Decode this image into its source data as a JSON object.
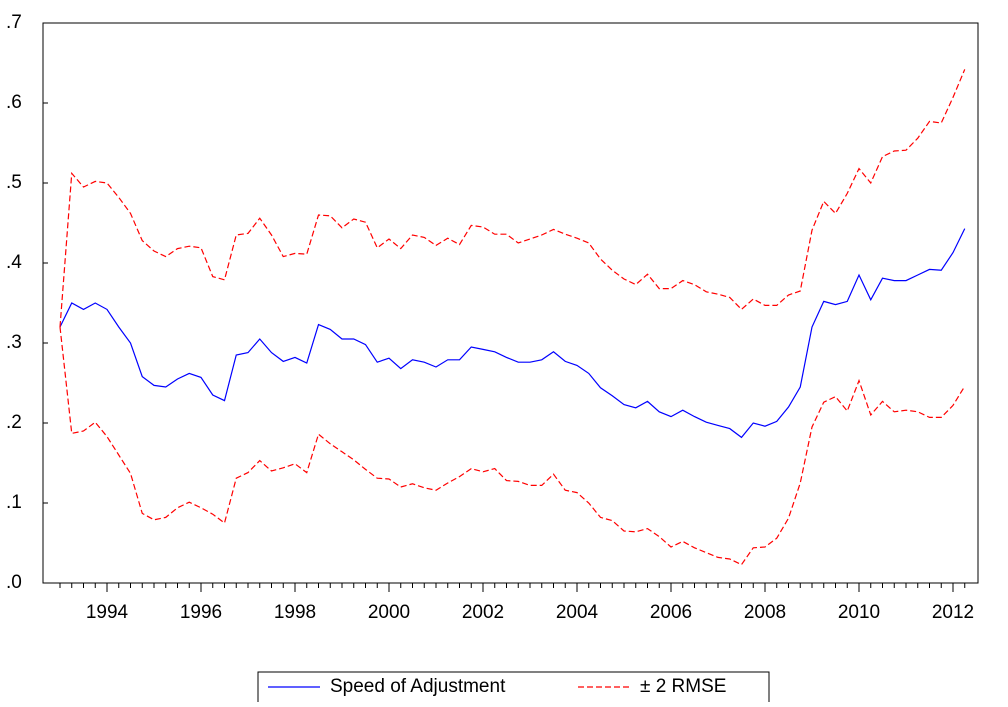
{
  "chart_data": {
    "type": "line",
    "categories": [
      null,
      null,
      null,
      null,
      "1994",
      null,
      null,
      null,
      null,
      null,
      null,
      null,
      "1996",
      null,
      null,
      null,
      null,
      null,
      null,
      null,
      "1998",
      null,
      null,
      null,
      null,
      null,
      null,
      null,
      "2000",
      null,
      null,
      null,
      null,
      null,
      null,
      null,
      "2002",
      null,
      null,
      null,
      null,
      null,
      null,
      null,
      "2004",
      null,
      null,
      null,
      null,
      null,
      null,
      null,
      "2006",
      null,
      null,
      null,
      null,
      null,
      null,
      null,
      "2008",
      null,
      null,
      null,
      null,
      null,
      null,
      null,
      "2010",
      null,
      null,
      null,
      null,
      null,
      null,
      null,
      "2012",
      null
    ],
    "series": [
      {
        "name": "Speed of Adjustment",
        "color": "#0000ff",
        "dashed": false,
        "values": [
          0.32,
          0.35,
          0.342,
          0.35,
          0.342,
          0.32,
          0.3,
          0.258,
          0.247,
          0.245,
          0.255,
          0.262,
          0.257,
          0.235,
          0.228,
          0.285,
          0.288,
          0.305,
          0.288,
          0.277,
          0.282,
          0.275,
          0.323,
          0.317,
          0.305,
          0.305,
          0.298,
          0.276,
          0.281,
          0.268,
          0.279,
          0.276,
          0.27,
          0.279,
          0.279,
          0.295,
          0.292,
          0.289,
          0.282,
          0.276,
          0.276,
          0.279,
          0.289,
          0.277,
          0.272,
          0.262,
          0.244,
          0.234,
          0.223,
          0.219,
          0.227,
          0.214,
          0.208,
          0.216,
          0.208,
          0.201,
          0.197,
          0.193,
          0.182,
          0.2,
          0.196,
          0.202,
          0.22,
          0.245,
          0.32,
          0.352,
          0.348,
          0.352,
          0.385,
          0.354,
          0.381,
          0.378,
          0.378,
          0.385,
          0.392,
          0.391,
          0.413,
          0.443
        ]
      },
      {
        "name": "± 2 RMSE",
        "color": "#ff0000",
        "dashed": true,
        "values": [
          0.32,
          0.512,
          0.495,
          0.502,
          0.5,
          0.482,
          0.462,
          0.428,
          0.415,
          0.408,
          0.418,
          0.421,
          0.419,
          0.383,
          0.379,
          0.435,
          0.437,
          0.456,
          0.435,
          0.408,
          0.412,
          0.411,
          0.46,
          0.459,
          0.444,
          0.455,
          0.451,
          0.419,
          0.43,
          0.418,
          0.435,
          0.432,
          0.422,
          0.431,
          0.423,
          0.447,
          0.445,
          0.436,
          0.436,
          0.425,
          0.43,
          0.435,
          0.442,
          0.436,
          0.431,
          0.425,
          0.405,
          0.391,
          0.38,
          0.373,
          0.386,
          0.368,
          0.368,
          0.378,
          0.373,
          0.364,
          0.361,
          0.357,
          0.342,
          0.355,
          0.347,
          0.347,
          0.36,
          0.365,
          0.441,
          0.477,
          0.462,
          0.487,
          0.518,
          0.5,
          0.533,
          0.54,
          0.541,
          0.556,
          0.577,
          0.575,
          0.607,
          0.642
        ],
        "values_lower": [
          0.32,
          0.187,
          0.19,
          0.201,
          0.183,
          0.16,
          0.137,
          0.087,
          0.079,
          0.082,
          0.094,
          0.101,
          0.094,
          0.086,
          0.075,
          0.131,
          0.138,
          0.153,
          0.14,
          0.144,
          0.149,
          0.138,
          0.186,
          0.174,
          0.164,
          0.154,
          0.142,
          0.131,
          0.13,
          0.12,
          0.124,
          0.119,
          0.116,
          0.125,
          0.133,
          0.143,
          0.139,
          0.143,
          0.128,
          0.127,
          0.122,
          0.122,
          0.136,
          0.116,
          0.113,
          0.1,
          0.082,
          0.078,
          0.065,
          0.064,
          0.068,
          0.058,
          0.045,
          0.052,
          0.044,
          0.038,
          0.032,
          0.03,
          0.023,
          0.044,
          0.045,
          0.056,
          0.081,
          0.125,
          0.195,
          0.226,
          0.233,
          0.215,
          0.253,
          0.21,
          0.227,
          0.214,
          0.216,
          0.214,
          0.207,
          0.207,
          0.222,
          0.246
        ]
      }
    ],
    "ylim": [
      0,
      0.7
    ],
    "yticks": [
      {
        "value": 0,
        "label": ".0"
      },
      {
        "value": 0.1,
        "label": ".1"
      },
      {
        "value": 0.2,
        "label": ".2"
      },
      {
        "value": 0.3,
        "label": ".3"
      },
      {
        "value": 0.4,
        "label": ".4"
      },
      {
        "value": 0.5,
        "label": ".5"
      },
      {
        "value": 0.6,
        "label": ".6"
      },
      {
        "value": 0.7,
        "label": ".7"
      }
    ],
    "grid": false,
    "legend": "bottom"
  }
}
